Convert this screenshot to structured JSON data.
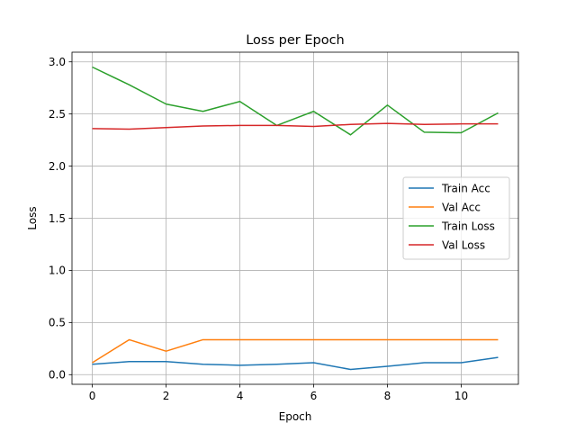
{
  "chart_data": {
    "type": "line",
    "title": "Loss per Epoch",
    "xlabel": "Epoch",
    "ylabel": "Loss",
    "xlim": [
      -0.55,
      11.55
    ],
    "ylim": [
      -0.0925,
      3.0925
    ],
    "x_ticks": [
      0,
      2,
      4,
      6,
      8,
      10
    ],
    "y_ticks": [
      0.0,
      0.5,
      1.0,
      1.5,
      2.0,
      2.5,
      3.0
    ],
    "y_tick_labels": [
      "0.0",
      "0.5",
      "1.0",
      "1.5",
      "2.0",
      "2.5",
      "3.0"
    ],
    "grid": true,
    "legend_position": "center-right",
    "x": [
      0,
      1,
      2,
      3,
      4,
      5,
      6,
      7,
      8,
      9,
      10,
      11
    ],
    "series": [
      {
        "name": "Train Acc",
        "color": "#1f77b4",
        "values": [
          0.1,
          0.125,
          0.125,
          0.1,
          0.09,
          0.1,
          0.115,
          0.05,
          0.08,
          0.115,
          0.115,
          0.165
        ]
      },
      {
        "name": "Val Acc",
        "color": "#ff7f0e",
        "values": [
          0.115,
          0.335,
          0.225,
          0.335,
          0.335,
          0.335,
          0.335,
          0.335,
          0.335,
          0.335,
          0.335,
          0.335
        ]
      },
      {
        "name": "Train Loss",
        "color": "#2ca02c",
        "values": [
          2.95,
          2.78,
          2.595,
          2.525,
          2.62,
          2.39,
          2.525,
          2.3,
          2.585,
          2.325,
          2.32,
          2.51
        ]
      },
      {
        "name": "Val Loss",
        "color": "#d62728",
        "values": [
          2.36,
          2.355,
          2.37,
          2.385,
          2.39,
          2.39,
          2.38,
          2.4,
          2.41,
          2.4,
          2.405,
          2.405
        ]
      }
    ]
  }
}
